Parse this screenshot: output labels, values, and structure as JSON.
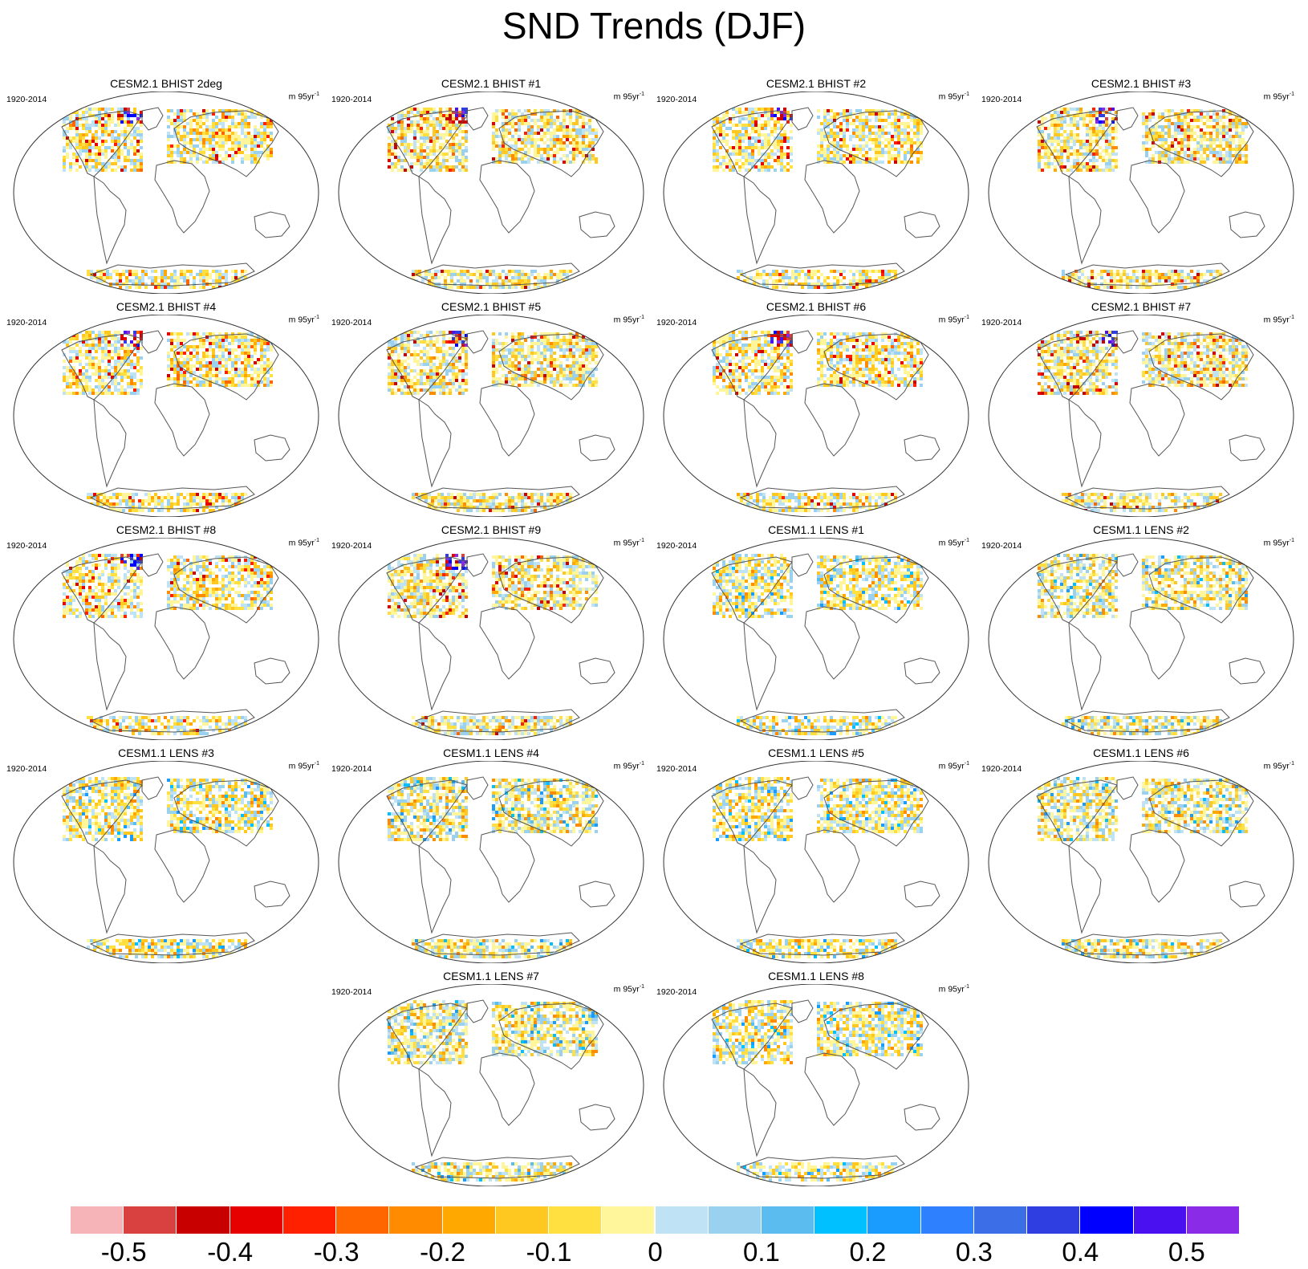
{
  "title": "SND Trends (DJF)",
  "panels": [
    {
      "title": "CESM2.1 BHIST 2deg",
      "period": "1920-2014",
      "units": "m 95yr",
      "units_exp": "-1"
    },
    {
      "title": "CESM2.1 BHIST #1",
      "period": "1920-2014",
      "units": "m 95yr",
      "units_exp": "-1"
    },
    {
      "title": "CESM2.1 BHIST #2",
      "period": "1920-2014",
      "units": "m 95yr",
      "units_exp": "-1"
    },
    {
      "title": "CESM2.1 BHIST #3",
      "period": "1920-2014",
      "units": "m 95yr",
      "units_exp": "-1"
    },
    {
      "title": "CESM2.1 BHIST #4",
      "period": "1920-2014",
      "units": "m 95yr",
      "units_exp": "-1"
    },
    {
      "title": "CESM2.1 BHIST #5",
      "period": "1920-2014",
      "units": "m 95yr",
      "units_exp": "-1"
    },
    {
      "title": "CESM2.1 BHIST #6",
      "period": "1920-2014",
      "units": "m 95yr",
      "units_exp": "-1"
    },
    {
      "title": "CESM2.1 BHIST #7",
      "period": "1920-2014",
      "units": "m 95yr",
      "units_exp": "-1"
    },
    {
      "title": "CESM2.1 BHIST #8",
      "period": "1920-2014",
      "units": "m 95yr",
      "units_exp": "-1"
    },
    {
      "title": "CESM2.1 BHIST #9",
      "period": "1920-2014",
      "units": "m 95yr",
      "units_exp": "-1"
    },
    {
      "title": "CESM1.1 LENS #1",
      "period": "1920-2014",
      "units": "m 95yr",
      "units_exp": "-1"
    },
    {
      "title": "CESM1.1 LENS #2",
      "period": "1920-2014",
      "units": "m 95yr",
      "units_exp": "-1"
    },
    {
      "title": "CESM1.1 LENS #3",
      "period": "1920-2014",
      "units": "m 95yr",
      "units_exp": "-1"
    },
    {
      "title": "CESM1.1 LENS #4",
      "period": "1920-2014",
      "units": "m 95yr",
      "units_exp": "-1"
    },
    {
      "title": "CESM1.1 LENS #5",
      "period": "1920-2014",
      "units": "m 95yr",
      "units_exp": "-1"
    },
    {
      "title": "CESM1.1 LENS #6",
      "period": "1920-2014",
      "units": "m 95yr",
      "units_exp": "-1"
    },
    {
      "title": "CESM1.1 LENS #7",
      "period": "1920-2014",
      "units": "m 95yr",
      "units_exp": "-1"
    },
    {
      "title": "CESM1.1 LENS #8",
      "period": "1920-2014",
      "units": "m 95yr",
      "units_exp": "-1"
    }
  ],
  "colorbar": {
    "colors": [
      "#f7b4b8",
      "#d94040",
      "#c80000",
      "#e60000",
      "#ff2000",
      "#ff6600",
      "#ff8c00",
      "#ffa800",
      "#ffc820",
      "#ffe040",
      "#fff59a",
      "#bfe2f5",
      "#99d1ee",
      "#5bbcf0",
      "#00c0ff",
      "#1a9cff",
      "#2e80ff",
      "#3c6ee8",
      "#2e3ee0",
      "#0000ff",
      "#4a10f0",
      "#8a2be8"
    ],
    "tick_labels": [
      "-0.5",
      "-0.4",
      "-0.3",
      "-0.2",
      "-0.1",
      "0",
      "0.1",
      "0.2",
      "0.3",
      "0.4",
      "0.5"
    ]
  }
}
